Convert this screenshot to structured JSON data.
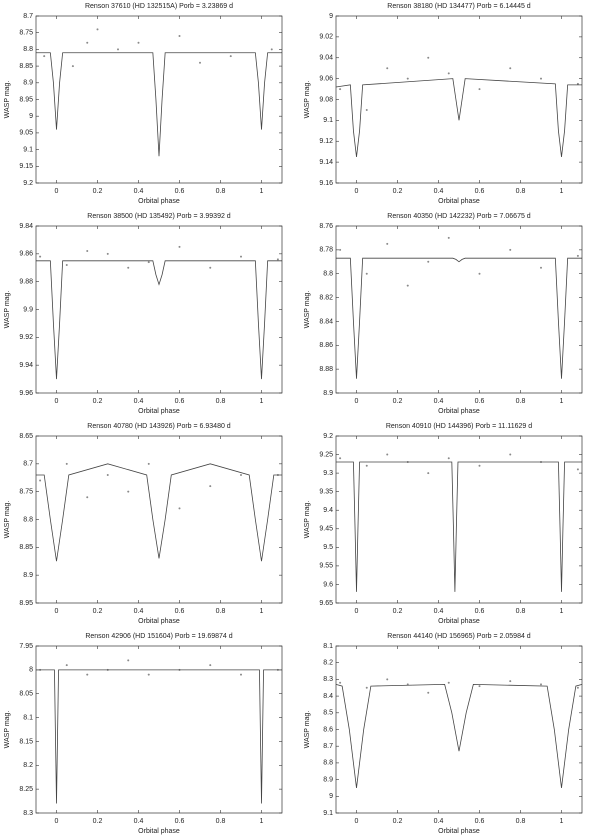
{
  "chart_data": [
    {
      "type": "scatter",
      "title": "Renson 37610 (HD 132515A) Porb = 3.23869 d",
      "x_label": "Orbital phase",
      "y_label": "WASP mag.",
      "xlim": [
        -0.1,
        1.1
      ],
      "xticks": [
        0,
        0.2,
        0.4,
        0.6,
        0.8,
        1
      ],
      "ylim": [
        8.7,
        9.2
      ],
      "yticks": [
        8.7,
        8.75,
        8.8,
        8.85,
        8.9,
        8.95,
        9,
        9.05,
        9.1,
        9.15,
        9.2
      ],
      "y_inverted": true,
      "series": [
        {
          "type": "points",
          "color": "#8a8a8a",
          "x": [
            -0.06,
            0.08,
            0.15,
            0.2,
            0.3,
            0.4,
            0.6,
            0.7,
            0.85,
            1.05
          ],
          "values": [
            8.82,
            8.85,
            8.78,
            8.74,
            8.8,
            8.78,
            8.76,
            8.84,
            8.82,
            8.8
          ]
        },
        {
          "type": "line",
          "color": "#444444",
          "x": [
            -0.1,
            -0.03,
            -0.015,
            0,
            0.015,
            0.03,
            0.47,
            0.485,
            0.5,
            0.515,
            0.53,
            0.97,
            0.985,
            1,
            1.015,
            1.03,
            1.1
          ],
          "values": [
            8.81,
            8.81,
            8.9,
            9.04,
            8.9,
            8.81,
            8.81,
            8.95,
            9.12,
            8.95,
            8.81,
            8.81,
            8.9,
            9.04,
            8.9,
            8.81,
            8.81
          ]
        }
      ]
    },
    {
      "type": "scatter",
      "title": "Renson 38180 (HD 134477) Porb = 6.14445 d",
      "x_label": "Orbital phase",
      "y_label": "WASP mag.",
      "xlim": [
        -0.1,
        1.1
      ],
      "xticks": [
        0,
        0.2,
        0.4,
        0.6,
        0.8,
        1
      ],
      "ylim": [
        9,
        9.16
      ],
      "yticks": [
        9,
        9.02,
        9.04,
        9.06,
        9.08,
        9.1,
        9.12,
        9.14,
        9.16
      ],
      "y_inverted": true,
      "series": [
        {
          "type": "points",
          "color": "#8a8a8a",
          "x": [
            -0.08,
            0.05,
            0.15,
            0.25,
            0.35,
            0.45,
            0.6,
            0.75,
            0.9,
            1.08
          ],
          "values": [
            9.07,
            9.09,
            9.05,
            9.06,
            9.04,
            9.055,
            9.07,
            9.05,
            9.06,
            9.065
          ]
        },
        {
          "type": "line",
          "color": "#444444",
          "x": [
            -0.1,
            -0.03,
            -0.015,
            0,
            0.015,
            0.03,
            0.47,
            0.485,
            0.5,
            0.515,
            0.53,
            0.97,
            0.985,
            1,
            1.015,
            1.03,
            1.1
          ],
          "values": [
            9.068,
            9.066,
            9.11,
            9.135,
            9.11,
            9.066,
            9.06,
            9.08,
            9.1,
            9.08,
            9.06,
            9.065,
            9.11,
            9.135,
            9.11,
            9.066,
            9.066
          ]
        }
      ]
    },
    {
      "type": "scatter",
      "title": "Renson 38500 (HD 135492) Porb = 3.99392 d",
      "x_label": "Orbital phase",
      "y_label": "WASP mag.",
      "xlim": [
        -0.1,
        1.1
      ],
      "xticks": [
        0,
        0.2,
        0.4,
        0.6,
        0.8,
        1
      ],
      "ylim": [
        9.84,
        9.96
      ],
      "yticks": [
        9.84,
        9.86,
        9.88,
        9.9,
        9.92,
        9.94,
        9.96
      ],
      "y_inverted": true,
      "series": [
        {
          "type": "points",
          "color": "#8a8a8a",
          "x": [
            -0.08,
            0.05,
            0.15,
            0.25,
            0.35,
            0.45,
            0.6,
            0.75,
            0.9,
            1.08
          ],
          "values": [
            9.862,
            9.868,
            9.858,
            9.86,
            9.87,
            9.866,
            9.855,
            9.87,
            9.862,
            9.864
          ]
        },
        {
          "type": "line",
          "color": "#444444",
          "x": [
            -0.1,
            -0.03,
            -0.015,
            0,
            0.015,
            0.03,
            0.47,
            0.485,
            0.5,
            0.515,
            0.53,
            0.97,
            0.985,
            1,
            1.015,
            1.03,
            1.1
          ],
          "values": [
            9.865,
            9.865,
            9.91,
            9.95,
            9.91,
            9.865,
            9.865,
            9.875,
            9.882,
            9.875,
            9.865,
            9.865,
            9.91,
            9.95,
            9.91,
            9.865,
            9.865
          ]
        }
      ]
    },
    {
      "type": "scatter",
      "title": "Renson 40350 (HD 142232) Porb = 7.06675 d",
      "x_label": "Orbital phase",
      "y_label": "WASP mag.",
      "xlim": [
        -0.1,
        1.1
      ],
      "xticks": [
        0,
        0.2,
        0.4,
        0.6,
        0.8,
        1
      ],
      "ylim": [
        8.76,
        8.9
      ],
      "yticks": [
        8.76,
        8.78,
        8.8,
        8.82,
        8.84,
        8.86,
        8.88,
        8.9
      ],
      "y_inverted": true,
      "series": [
        {
          "type": "points",
          "color": "#8a8a8a",
          "x": [
            -0.08,
            0.05,
            0.15,
            0.25,
            0.35,
            0.45,
            0.6,
            0.75,
            0.9,
            1.08
          ],
          "values": [
            8.78,
            8.8,
            8.775,
            8.81,
            8.79,
            8.77,
            8.8,
            8.78,
            8.795,
            8.785
          ]
        },
        {
          "type": "line",
          "color": "#444444",
          "x": [
            -0.1,
            -0.03,
            -0.015,
            0,
            0.015,
            0.03,
            0.47,
            0.485,
            0.5,
            0.515,
            0.53,
            0.97,
            0.985,
            1,
            1.015,
            1.03,
            1.1
          ],
          "values": [
            8.787,
            8.787,
            8.84,
            8.888,
            8.84,
            8.787,
            8.787,
            8.788,
            8.79,
            8.788,
            8.787,
            8.787,
            8.84,
            8.888,
            8.84,
            8.787,
            8.787
          ]
        }
      ]
    },
    {
      "type": "scatter",
      "title": "Renson 40780 (HD 143926) Porb = 6.93480 d",
      "x_label": "Orbital phase",
      "y_label": "WASP mag.",
      "xlim": [
        -0.1,
        1.1
      ],
      "xticks": [
        0,
        0.2,
        0.4,
        0.6,
        0.8,
        1
      ],
      "ylim": [
        8.65,
        8.95
      ],
      "yticks": [
        8.65,
        8.7,
        8.75,
        8.8,
        8.85,
        8.9,
        8.95
      ],
      "y_inverted": true,
      "series": [
        {
          "type": "points",
          "color": "#8a8a8a",
          "x": [
            -0.08,
            0.05,
            0.15,
            0.25,
            0.35,
            0.45,
            0.6,
            0.75,
            0.9,
            1.08
          ],
          "values": [
            8.73,
            8.7,
            8.76,
            8.72,
            8.75,
            8.7,
            8.78,
            8.74,
            8.72,
            8.72
          ]
        },
        {
          "type": "line",
          "color": "#444444",
          "x": [
            -0.1,
            -0.06,
            -0.03,
            0,
            0.03,
            0.06,
            0.25,
            0.44,
            0.47,
            0.5,
            0.53,
            0.56,
            0.75,
            0.94,
            0.97,
            1,
            1.03,
            1.06,
            1.1
          ],
          "values": [
            8.72,
            8.72,
            8.8,
            8.875,
            8.8,
            8.72,
            8.7,
            8.72,
            8.8,
            8.87,
            8.8,
            8.72,
            8.7,
            8.72,
            8.8,
            8.875,
            8.8,
            8.72,
            8.72
          ]
        }
      ]
    },
    {
      "type": "scatter",
      "title": "Renson 40910 (HD 144396) Porb = 11.11629 d",
      "x_label": "Orbital phase",
      "y_label": "WASP mag.",
      "xlim": [
        -0.1,
        1.1
      ],
      "xticks": [
        0,
        0.2,
        0.4,
        0.6,
        0.8,
        1
      ],
      "ylim": [
        9.2,
        9.65
      ],
      "yticks": [
        9.2,
        9.25,
        9.3,
        9.35,
        9.4,
        9.45,
        9.5,
        9.55,
        9.6,
        9.65
      ],
      "y_inverted": true,
      "series": [
        {
          "type": "points",
          "color": "#8a8a8a",
          "x": [
            -0.08,
            0.05,
            0.15,
            0.25,
            0.35,
            0.45,
            0.6,
            0.75,
            0.9,
            1.08
          ],
          "values": [
            9.26,
            9.28,
            9.25,
            9.27,
            9.3,
            9.26,
            9.28,
            9.25,
            9.27,
            9.29
          ]
        },
        {
          "type": "line",
          "color": "#444444",
          "x": [
            -0.1,
            -0.015,
            -0.007,
            0,
            0.007,
            0.015,
            0.465,
            0.473,
            0.48,
            0.487,
            0.495,
            0.985,
            0.993,
            1,
            1.007,
            1.015,
            1.1
          ],
          "values": [
            9.27,
            9.27,
            9.45,
            9.62,
            9.45,
            9.27,
            9.27,
            9.45,
            9.62,
            9.45,
            9.27,
            9.27,
            9.45,
            9.62,
            9.45,
            9.27,
            9.27
          ]
        }
      ]
    },
    {
      "type": "scatter",
      "title": "Renson 42906 (HD 151604) Porb = 19.69874 d",
      "x_label": "Orbital phase",
      "y_label": "WASP mag.",
      "xlim": [
        -0.1,
        1.1
      ],
      "xticks": [
        0,
        0.2,
        0.4,
        0.6,
        0.8,
        1
      ],
      "ylim": [
        7.95,
        8.3
      ],
      "yticks": [
        7.95,
        8,
        8.05,
        8.1,
        8.15,
        8.2,
        8.25,
        8.3
      ],
      "y_inverted": true,
      "series": [
        {
          "type": "points",
          "color": "#8a8a8a",
          "x": [
            -0.08,
            0.05,
            0.15,
            0.25,
            0.35,
            0.45,
            0.6,
            0.75,
            0.9,
            1.08
          ],
          "values": [
            8,
            7.99,
            8.01,
            8,
            7.98,
            8.01,
            8,
            7.99,
            8.01,
            8
          ]
        },
        {
          "type": "line",
          "color": "#444444",
          "x": [
            -0.1,
            -0.01,
            -0.005,
            0,
            0.005,
            0.01,
            0.99,
            0.995,
            1,
            1.005,
            1.01,
            1.1
          ],
          "values": [
            8,
            8,
            8.14,
            8.28,
            8.14,
            8,
            8,
            8.14,
            8.28,
            8.14,
            8,
            8
          ]
        }
      ]
    },
    {
      "type": "scatter",
      "title": "Renson 44140 (HD 156965) Porb = 2.05984 d",
      "x_label": "Orbital phase",
      "y_label": "WASP mag.",
      "xlim": [
        -0.1,
        1.1
      ],
      "xticks": [
        0,
        0.2,
        0.4,
        0.6,
        0.8,
        1
      ],
      "ylim": [
        8.1,
        9.1
      ],
      "yticks": [
        8.1,
        8.2,
        8.3,
        8.4,
        8.5,
        8.6,
        8.7,
        8.8,
        8.9,
        9,
        9.1
      ],
      "y_inverted": true,
      "series": [
        {
          "type": "points",
          "color": "#8a8a8a",
          "x": [
            -0.08,
            0.05,
            0.15,
            0.25,
            0.35,
            0.45,
            0.6,
            0.75,
            0.9,
            1.08
          ],
          "values": [
            8.32,
            8.35,
            8.3,
            8.33,
            8.38,
            8.32,
            8.34,
            8.31,
            8.33,
            8.35
          ]
        },
        {
          "type": "line",
          "color": "#444444",
          "x": [
            -0.1,
            -0.07,
            -0.035,
            0,
            0.035,
            0.07,
            0.43,
            0.465,
            0.5,
            0.535,
            0.57,
            0.93,
            0.965,
            1,
            1.035,
            1.07,
            1.1
          ],
          "values": [
            8.33,
            8.34,
            8.6,
            8.95,
            8.6,
            8.34,
            8.33,
            8.5,
            8.73,
            8.5,
            8.33,
            8.34,
            8.6,
            8.95,
            8.6,
            8.34,
            8.33
          ]
        }
      ]
    }
  ]
}
